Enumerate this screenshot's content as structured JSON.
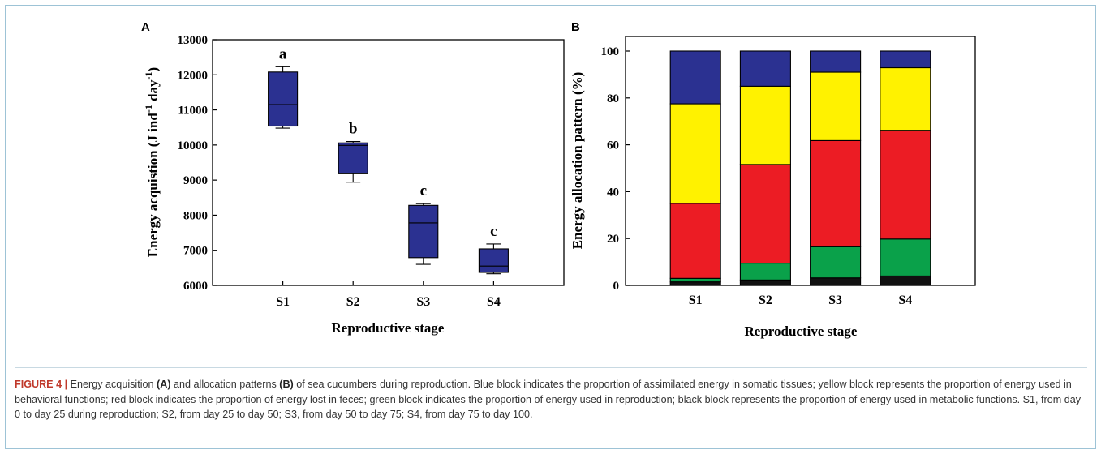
{
  "chart_data": [
    {
      "type": "box",
      "panel": "A",
      "ylabel_prefix": "Energy acquistion (J ind",
      "ylabel_sup1": "-1",
      "ylabel_mid": " day",
      "ylabel_sup2": "-1",
      "ylabel_suffix": ")",
      "xlabel": "Reproductive stage",
      "ylim": [
        6000,
        13000
      ],
      "yticks": [
        "6000",
        "7000",
        "8000",
        "9000",
        "10000",
        "11000",
        "12000",
        "13000"
      ],
      "categories": [
        "S1",
        "S2",
        "S3",
        "S4"
      ],
      "boxes": [
        {
          "min": 10480,
          "q1": 10540,
          "median": 11150,
          "q3": 12080,
          "max": 12230,
          "letter": "a"
        },
        {
          "min": 8940,
          "q1": 9180,
          "median": 9990,
          "q3": 10060,
          "max": 10100,
          "letter": "b"
        },
        {
          "min": 6600,
          "q1": 6790,
          "median": 7780,
          "q3": 8280,
          "max": 8330,
          "letter": "c"
        },
        {
          "min": 6330,
          "q1": 6370,
          "median": 6550,
          "q3": 7040,
          "max": 7180,
          "letter": "c"
        }
      ],
      "box_color": "#2b3191"
    },
    {
      "type": "stacked_bar",
      "panel": "B",
      "ylabel": "Energy allocation pattern (%)",
      "xlabel": "Reproductive stage",
      "ylim": [
        0,
        100
      ],
      "yticks": [
        "0",
        "20",
        "40",
        "60",
        "80",
        "100"
      ],
      "categories": [
        "S1",
        "S2",
        "S3",
        "S4"
      ],
      "series": [
        {
          "color": "#111111",
          "values": [
            1.5,
            2.3,
            3.2,
            4.0
          ]
        },
        {
          "color": "#0aa14a",
          "values": [
            1.5,
            7.2,
            13.3,
            15.8
          ]
        },
        {
          "color": "#ec1c24",
          "values": [
            32.0,
            42.1,
            45.3,
            46.4
          ]
        },
        {
          "color": "#fff200",
          "values": [
            42.5,
            33.4,
            29.2,
            26.7
          ]
        },
        {
          "color": "#2b3191",
          "values": [
            22.5,
            15.0,
            9.0,
            7.1
          ]
        }
      ]
    }
  ],
  "caption": {
    "figure_label": "FIGURE 4 |",
    "t1": " Energy acquisition ",
    "a": "(A)",
    "t2": " and allocation patterns ",
    "b": "(B)",
    "t3": " of sea cucumbers during reproduction. Blue block indicates the proportion of assimilated energy in somatic tissues; yellow block represents the proportion of energy used in behavioral functions; red block indicates the proportion of energy lost in feces; green block indicates the proportion of energy used in reproduction; black block represents the proportion of energy used in metabolic functions. S1, from day 0 to day 25 during reproduction; S2, from day 25 to day 50; S3, from day 50 to day 75; S4, from day 75 to day 100."
  }
}
